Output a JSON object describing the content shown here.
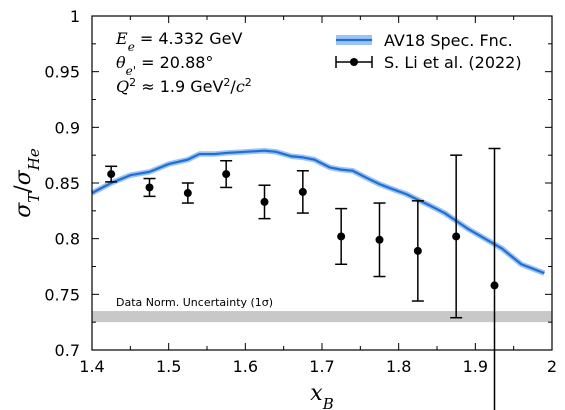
{
  "chart_data": {
    "type": "line",
    "xlabel": "x_B",
    "ylabel": "σ_T / σ_He",
    "xlim": [
      1.4,
      2.0
    ],
    "ylim": [
      0.7,
      1.0
    ],
    "xticks": [
      "1.4",
      "1.5",
      "1.6",
      "1.7",
      "1.8",
      "1.9",
      "2"
    ],
    "yticks": [
      "0.7",
      "0.75",
      "0.8",
      "0.85",
      "0.9",
      "0.95",
      "1"
    ],
    "grid": false,
    "legend_position": "top-right",
    "annotations": {
      "energy": "E_e = 4.332 GeV",
      "angle": "θ_e' = 20.88°",
      "q2": "Q² ≈ 1.9 GeV²/c²"
    },
    "band": {
      "label": "Data Norm. Uncertainty (1σ)",
      "ymin": 0.725,
      "ymax": 0.735,
      "color": "#c8c8c8"
    },
    "series": [
      {
        "name": "AV18 Spec. Fnc.",
        "kind": "line",
        "color": "#1f6fd6",
        "x": [
          1.4,
          1.425,
          1.45,
          1.475,
          1.5,
          1.525,
          1.54,
          1.56,
          1.575,
          1.6,
          1.625,
          1.64,
          1.66,
          1.675,
          1.69,
          1.71,
          1.725,
          1.74,
          1.76,
          1.775,
          1.79,
          1.81,
          1.825,
          1.84,
          1.86,
          1.875,
          1.89,
          1.91,
          1.935,
          1.96,
          1.99
        ],
        "y": [
          0.841,
          0.85,
          0.857,
          0.86,
          0.867,
          0.871,
          0.876,
          0.876,
          0.877,
          0.878,
          0.879,
          0.878,
          0.874,
          0.873,
          0.871,
          0.864,
          0.862,
          0.861,
          0.854,
          0.849,
          0.845,
          0.84,
          0.835,
          0.83,
          0.823,
          0.816,
          0.809,
          0.801,
          0.791,
          0.777,
          0.769
        ]
      },
      {
        "name": "S. Li et al. (2022)",
        "kind": "errorbar",
        "color": "#000000",
        "x": [
          1.425,
          1.475,
          1.525,
          1.575,
          1.625,
          1.675,
          1.725,
          1.775,
          1.825,
          1.875,
          1.925
        ],
        "y": [
          0.858,
          0.846,
          0.841,
          0.858,
          0.833,
          0.842,
          0.802,
          0.799,
          0.789,
          0.802,
          0.758
        ],
        "err": [
          0.007,
          0.008,
          0.009,
          0.012,
          0.015,
          0.019,
          0.025,
          0.033,
          0.045,
          0.073,
          0.123
        ]
      }
    ]
  }
}
